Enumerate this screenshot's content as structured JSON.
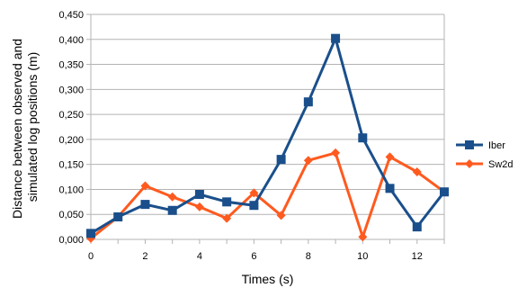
{
  "chart_data": {
    "type": "line",
    "xlabel": "Times (s)",
    "ylabel_lines": [
      "Distance between observed and",
      "simulated log positions (m)"
    ],
    "xlim": [
      0,
      13
    ],
    "ylim": [
      0,
      0.45
    ],
    "x_ticks": [
      0,
      2,
      4,
      6,
      8,
      10,
      12
    ],
    "x_tick_labels": [
      "0",
      "2",
      "4",
      "6",
      "8",
      "10",
      "12"
    ],
    "y_ticks": [
      0,
      0.05,
      0.1,
      0.15,
      0.2,
      0.25,
      0.3,
      0.35,
      0.4,
      0.45
    ],
    "y_tick_labels": [
      "0,000",
      "0,050",
      "0,100",
      "0,150",
      "0,200",
      "0,250",
      "0,300",
      "0,350",
      "0,400",
      "0,450"
    ],
    "grid": "horizontal",
    "legend_position": "right",
    "x": [
      0,
      1,
      2,
      3,
      4,
      5,
      6,
      7,
      8,
      9,
      10,
      11,
      12,
      13
    ],
    "series": [
      {
        "name": "Iber",
        "color": "#1a4f8b",
        "marker": "square",
        "values": [
          0.012,
          0.045,
          0.07,
          0.058,
          0.09,
          0.075,
          0.068,
          0.16,
          0.275,
          0.402,
          0.203,
          0.102,
          0.025,
          0.095
        ]
      },
      {
        "name": "Sw2d",
        "color": "#ff5a1f",
        "marker": "diamond",
        "values": [
          0.002,
          0.045,
          0.107,
          0.085,
          0.065,
          0.042,
          0.093,
          0.048,
          0.158,
          0.173,
          0.005,
          0.165,
          0.135,
          0.095
        ]
      }
    ]
  }
}
